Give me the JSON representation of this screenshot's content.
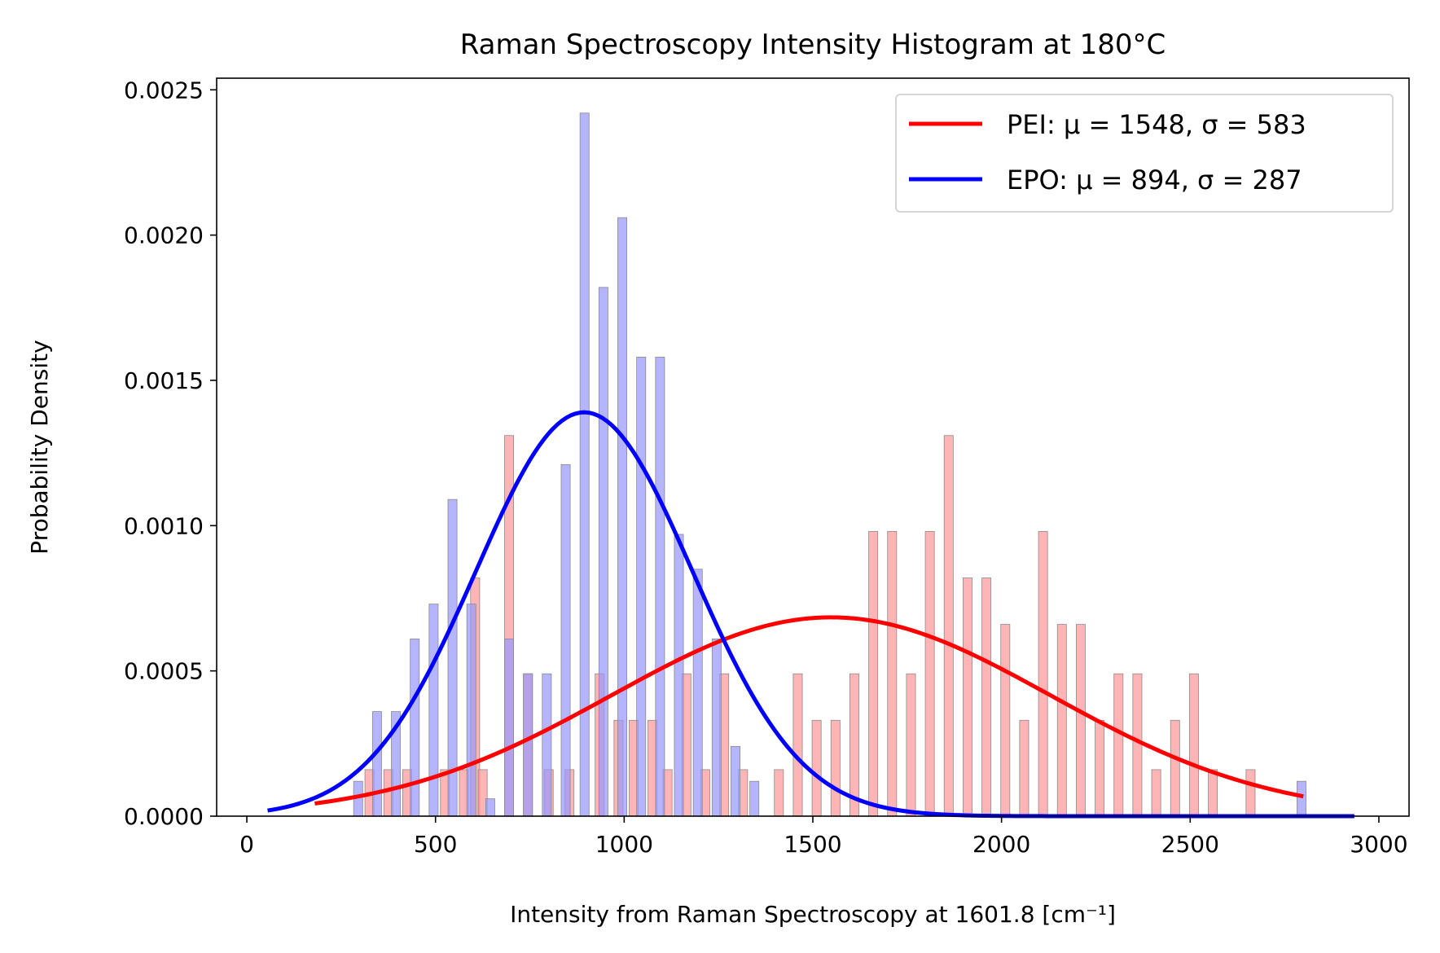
{
  "chart_data": {
    "type": "bar",
    "title": "Raman Spectroscopy Intensity Histogram at 180°C",
    "xlabel": "Intensity from Raman Spectroscopy at 1601.8 [cm⁻¹]",
    "ylabel": "Probability Density",
    "xlim": [
      -80,
      3080
    ],
    "ylim": [
      0,
      0.00254
    ],
    "x_ticks": [
      0,
      500,
      1000,
      1500,
      2000,
      2500,
      3000
    ],
    "x_tick_labels": [
      "0",
      "500",
      "1000",
      "1500",
      "2000",
      "2500",
      "3000"
    ],
    "y_ticks": [
      0,
      0.0005,
      0.001,
      0.0015,
      0.002,
      0.0025
    ],
    "y_tick_labels": [
      "0.0000",
      "0.0005",
      "0.0010",
      "0.0015",
      "0.0020",
      "0.0025"
    ],
    "legend_position": "top-right",
    "series": [
      {
        "name": "PEI: μ = 1548, σ = 583",
        "kind": "histogram",
        "bar_color": "#ff9999",
        "line_color": "#ff0000",
        "mu": 1548,
        "sigma": 583,
        "x_range": [
          180,
          2800
        ],
        "bin_width": 24,
        "bins": [
          {
            "x": 325,
            "y": 0.00016
          },
          {
            "x": 375,
            "y": 0.00016
          },
          {
            "x": 425,
            "y": 0.00016
          },
          {
            "x": 525,
            "y": 0.00016
          },
          {
            "x": 575,
            "y": 0.00016
          },
          {
            "x": 605,
            "y": 0.00082
          },
          {
            "x": 625,
            "y": 0.00016
          },
          {
            "x": 695,
            "y": 0.00131
          },
          {
            "x": 745,
            "y": 0.00049
          },
          {
            "x": 800,
            "y": 0.00016
          },
          {
            "x": 855,
            "y": 0.00016
          },
          {
            "x": 935,
            "y": 0.00049
          },
          {
            "x": 985,
            "y": 0.00033
          },
          {
            "x": 1025,
            "y": 0.00033
          },
          {
            "x": 1075,
            "y": 0.00033
          },
          {
            "x": 1115,
            "y": 0.00016
          },
          {
            "x": 1165,
            "y": 0.00049
          },
          {
            "x": 1215,
            "y": 0.00016
          },
          {
            "x": 1265,
            "y": 0.00049
          },
          {
            "x": 1315,
            "y": 0.00016
          },
          {
            "x": 1410,
            "y": 0.00016
          },
          {
            "x": 1460,
            "y": 0.00049
          },
          {
            "x": 1510,
            "y": 0.00033
          },
          {
            "x": 1560,
            "y": 0.00033
          },
          {
            "x": 1610,
            "y": 0.00049
          },
          {
            "x": 1660,
            "y": 0.00098
          },
          {
            "x": 1710,
            "y": 0.00098
          },
          {
            "x": 1760,
            "y": 0.00049
          },
          {
            "x": 1810,
            "y": 0.00098
          },
          {
            "x": 1860,
            "y": 0.00131
          },
          {
            "x": 1910,
            "y": 0.00082
          },
          {
            "x": 1960,
            "y": 0.00082
          },
          {
            "x": 2010,
            "y": 0.00066
          },
          {
            "x": 2060,
            "y": 0.00033
          },
          {
            "x": 2110,
            "y": 0.00098
          },
          {
            "x": 2160,
            "y": 0.00066
          },
          {
            "x": 2210,
            "y": 0.00066
          },
          {
            "x": 2260,
            "y": 0.00033
          },
          {
            "x": 2310,
            "y": 0.00049
          },
          {
            "x": 2360,
            "y": 0.00049
          },
          {
            "x": 2410,
            "y": 0.00016
          },
          {
            "x": 2460,
            "y": 0.00033
          },
          {
            "x": 2510,
            "y": 0.00049
          },
          {
            "x": 2560,
            "y": 0.00016
          },
          {
            "x": 2660,
            "y": 0.00016
          }
        ]
      },
      {
        "name": "EPO: μ = 894, σ = 287",
        "kind": "histogram",
        "bar_color": "#9999ff",
        "line_color": "#0000ff",
        "mu": 894,
        "sigma": 287,
        "x_range": [
          55,
          2935
        ],
        "bin_width": 24,
        "bins": [
          {
            "x": 295,
            "y": 0.00012
          },
          {
            "x": 345,
            "y": 0.00036
          },
          {
            "x": 395,
            "y": 0.00036
          },
          {
            "x": 445,
            "y": 0.00061
          },
          {
            "x": 495,
            "y": 0.00073
          },
          {
            "x": 545,
            "y": 0.00109
          },
          {
            "x": 595,
            "y": 0.00073
          },
          {
            "x": 645,
            "y": 6e-05
          },
          {
            "x": 695,
            "y": 0.00061
          },
          {
            "x": 745,
            "y": 0.00049
          },
          {
            "x": 795,
            "y": 0.00049
          },
          {
            "x": 845,
            "y": 0.00121
          },
          {
            "x": 895,
            "y": 0.00242
          },
          {
            "x": 945,
            "y": 0.00182
          },
          {
            "x": 995,
            "y": 0.00206
          },
          {
            "x": 1045,
            "y": 0.00158
          },
          {
            "x": 1095,
            "y": 0.00158
          },
          {
            "x": 1145,
            "y": 0.00097
          },
          {
            "x": 1195,
            "y": 0.00085
          },
          {
            "x": 1245,
            "y": 0.00061
          },
          {
            "x": 1295,
            "y": 0.00024
          },
          {
            "x": 1345,
            "y": 0.00012
          },
          {
            "x": 2795,
            "y": 0.00012
          }
        ]
      }
    ]
  }
}
